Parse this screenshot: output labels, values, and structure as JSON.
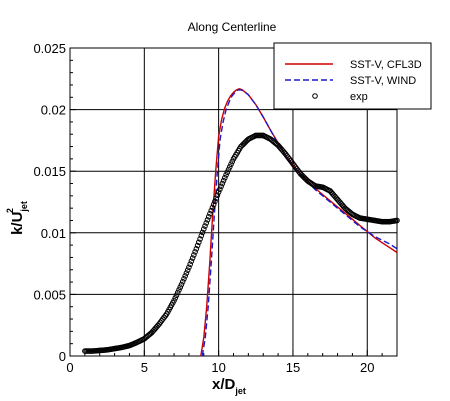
{
  "chart_data": {
    "type": "line",
    "title": "Along Centerline",
    "xlabel": {
      "main": "x/D",
      "sub": "jet"
    },
    "ylabel": {
      "main": "k/U",
      "sub": "jet",
      "sup": "2"
    },
    "xlim": [
      0,
      22
    ],
    "ylim": [
      0,
      0.025
    ],
    "xticks": [
      0,
      5,
      10,
      15,
      20
    ],
    "yticks": [
      0,
      0.005,
      0.01,
      0.015,
      0.02,
      0.025
    ],
    "xtick_labels": [
      "0",
      "5",
      "10",
      "15",
      "20"
    ],
    "ytick_labels": [
      "0",
      "0.005",
      "0.01",
      "0.015",
      "0.02",
      "0.025"
    ],
    "grid": true,
    "legend_position": "top-right",
    "series": [
      {
        "name": "SST-V, CFL3D",
        "style": "solid-line",
        "color": "#cc0000",
        "x": [
          8.8,
          9.0,
          9.2,
          9.4,
          9.6,
          9.8,
          10.0,
          10.2,
          10.4,
          10.6,
          10.8,
          11.0,
          11.2,
          11.4,
          11.6,
          11.8,
          12.0,
          12.5,
          13.0,
          13.5,
          14.0,
          14.5,
          15.0,
          15.5,
          16.0,
          16.5,
          17.0,
          17.5,
          18.0,
          18.5,
          19.0,
          19.5,
          20.0,
          20.5,
          21.0,
          21.5,
          22.0
        ],
        "y": [
          0.0,
          0.0015,
          0.004,
          0.0075,
          0.0115,
          0.015,
          0.0178,
          0.0192,
          0.0201,
          0.0207,
          0.0211,
          0.0214,
          0.0216,
          0.0217,
          0.0216,
          0.0214,
          0.0212,
          0.0204,
          0.0194,
          0.0183,
          0.0173,
          0.0163,
          0.0155,
          0.0148,
          0.0142,
          0.0136,
          0.0131,
          0.0126,
          0.0121,
          0.0116,
          0.0111,
          0.0106,
          0.0101,
          0.0096,
          0.0092,
          0.0088,
          0.0084
        ]
      },
      {
        "name": "SST-V, WIND",
        "style": "dashed-line",
        "color": "#1a1acc",
        "x": [
          8.9,
          9.1,
          9.3,
          9.5,
          9.7,
          9.9,
          10.1,
          10.3,
          10.5,
          10.7,
          10.9,
          11.1,
          11.3,
          11.5,
          11.7,
          12.0,
          12.5,
          13.0,
          13.5,
          14.0,
          14.5,
          15.0,
          15.5,
          16.0,
          16.5,
          17.0,
          17.5,
          18.0,
          18.5,
          19.0,
          19.5,
          20.0,
          20.5,
          21.0,
          21.5,
          22.0
        ],
        "y": [
          0.0,
          0.0015,
          0.004,
          0.0075,
          0.0113,
          0.0148,
          0.0176,
          0.019,
          0.02,
          0.0206,
          0.0211,
          0.0214,
          0.0216,
          0.0216,
          0.0215,
          0.0212,
          0.0204,
          0.0194,
          0.0183,
          0.0172,
          0.0162,
          0.0154,
          0.0147,
          0.0141,
          0.0135,
          0.013,
          0.0125,
          0.012,
          0.0115,
          0.011,
          0.0105,
          0.0101,
          0.0097,
          0.0094,
          0.0091,
          0.0087
        ]
      },
      {
        "name": "exp",
        "style": "open-circle-markers",
        "color": "#000000",
        "x": [
          1.0,
          1.5,
          2.0,
          2.5,
          3.0,
          3.5,
          4.0,
          4.5,
          5.0,
          5.5,
          6.0,
          6.5,
          7.0,
          7.5,
          8.0,
          8.5,
          9.0,
          9.5,
          10.0,
          10.5,
          11.0,
          11.5,
          12.0,
          12.5,
          13.0,
          13.5,
          14.0,
          14.5,
          15.0,
          15.5,
          16.0,
          16.5,
          17.0,
          17.5,
          18.0,
          18.5,
          19.0,
          19.5,
          20.0,
          20.5,
          21.0,
          21.5,
          22.0
        ],
        "y": [
          0.0004,
          0.0004,
          0.00045,
          0.0005,
          0.0006,
          0.0007,
          0.00085,
          0.0011,
          0.0014,
          0.0019,
          0.0026,
          0.0034,
          0.0045,
          0.0058,
          0.0072,
          0.0087,
          0.0103,
          0.0118,
          0.0133,
          0.0147,
          0.016,
          0.017,
          0.0176,
          0.0179,
          0.0179,
          0.0176,
          0.0171,
          0.0164,
          0.0156,
          0.0148,
          0.0142,
          0.0138,
          0.0137,
          0.0134,
          0.0127,
          0.012,
          0.0115,
          0.0112,
          0.0111,
          0.011,
          0.0109,
          0.0109,
          0.011
        ]
      }
    ]
  }
}
